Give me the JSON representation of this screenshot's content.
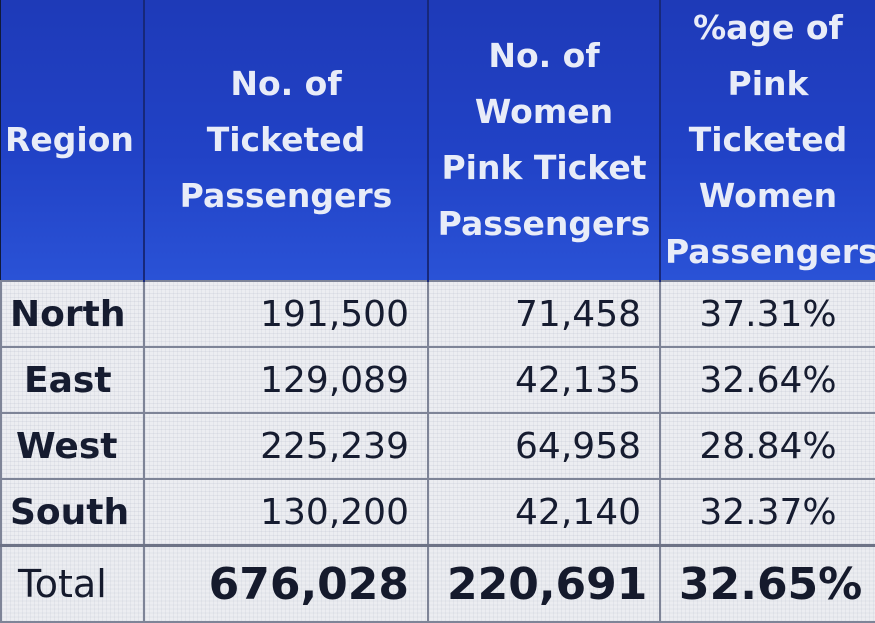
{
  "chart_data": {
    "type": "table",
    "columns": [
      "Region",
      "No. of Ticketed Passengers",
      "No. of Women Pink Ticket Passengers",
      "%age of Pink Ticketed Women Passengers"
    ],
    "header_lines": [
      [
        "Region"
      ],
      [
        "No. of Ticketed",
        "Passengers"
      ],
      [
        "No. of Women",
        "Pink Ticket",
        "Passengers"
      ],
      [
        "%age of Pink",
        "Ticketed",
        "Women",
        "Passengers"
      ]
    ],
    "rows": [
      {
        "region": "North",
        "ticketed": "191,500",
        "pink": "71,458",
        "pct": "37.31%"
      },
      {
        "region": "East",
        "ticketed": "129,089",
        "pink": "42,135",
        "pct": "32.64%"
      },
      {
        "region": "West",
        "ticketed": "225,239",
        "pink": "64,958",
        "pct": "28.84%"
      },
      {
        "region": "South",
        "ticketed": "130,200",
        "pink": "42,140",
        "pct": "32.37%"
      }
    ],
    "total": {
      "region": "Total",
      "ticketed": "676,028",
      "pink": "220,691",
      "pct": "32.65%"
    }
  },
  "colors": {
    "header_bg": "#2142c6",
    "header_text": "#e8ecf8",
    "body_bg": "#ecedf1",
    "body_text": "#161c30",
    "grid": "#7e8497"
  }
}
